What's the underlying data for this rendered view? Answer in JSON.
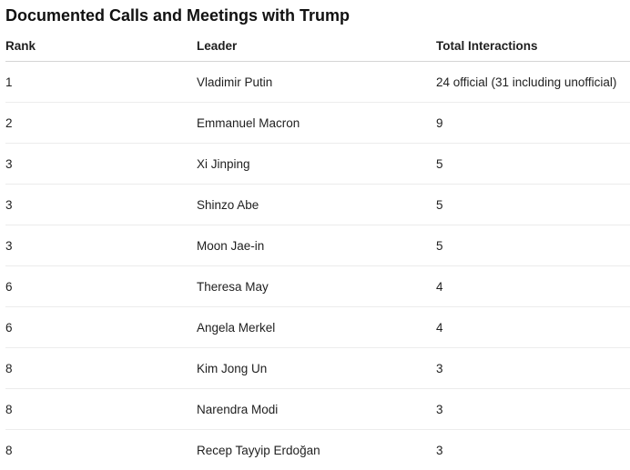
{
  "title": "Documented Calls and Meetings with Trump",
  "table": {
    "headers": [
      "Rank",
      "Leader",
      "Total Interactions"
    ],
    "rows": [
      {
        "rank": "1",
        "leader": "Vladimir Putin",
        "total": "24 official (31 including unofficial)"
      },
      {
        "rank": "2",
        "leader": "Emmanuel Macron",
        "total": "9"
      },
      {
        "rank": "3",
        "leader": "Xi Jinping",
        "total": "5"
      },
      {
        "rank": "3",
        "leader": "Shinzo Abe",
        "total": "5"
      },
      {
        "rank": "3",
        "leader": "Moon Jae-in",
        "total": "5"
      },
      {
        "rank": "6",
        "leader": "Theresa May",
        "total": "4"
      },
      {
        "rank": "6",
        "leader": "Angela Merkel",
        "total": "4"
      },
      {
        "rank": "8",
        "leader": "Kim Jong Un",
        "total": "3"
      },
      {
        "rank": "8",
        "leader": "Narendra Modi",
        "total": "3"
      },
      {
        "rank": "8",
        "leader": "Recep Tayyip Erdoğan",
        "total": "3"
      }
    ]
  }
}
